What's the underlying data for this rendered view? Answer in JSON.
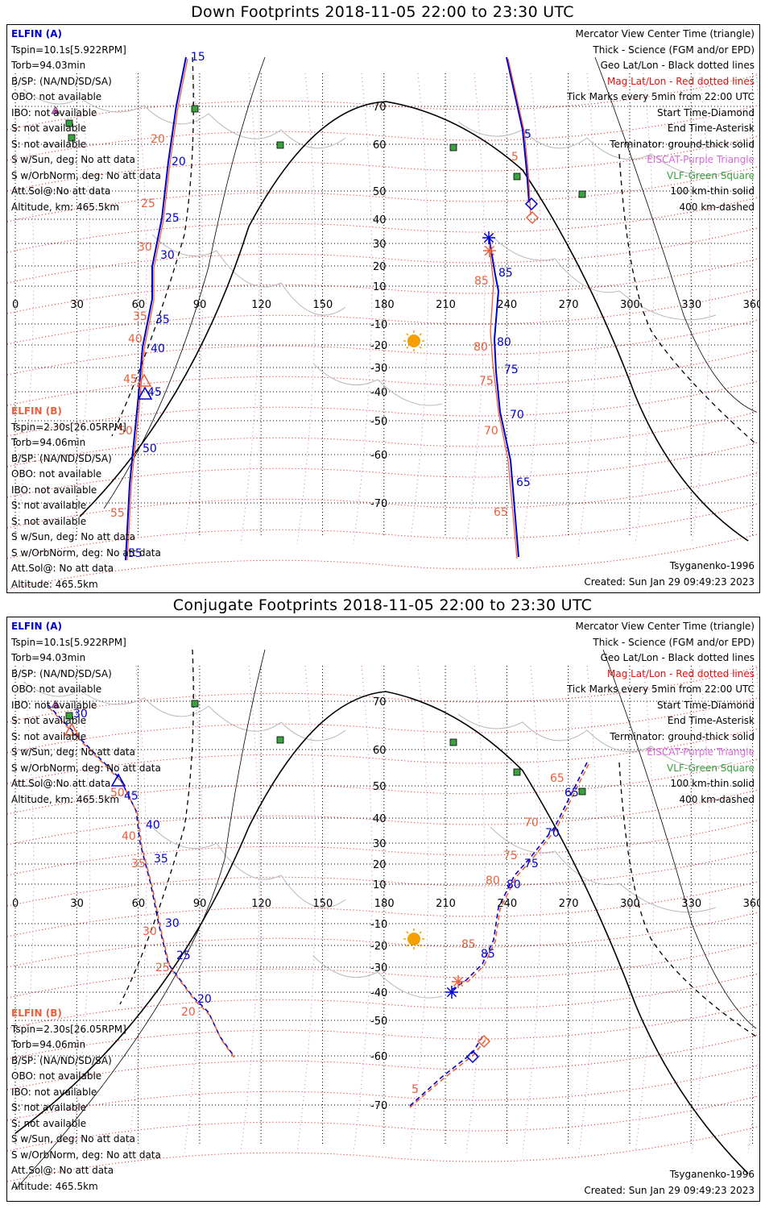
{
  "titles": {
    "down": "Down Footprints 2018-11-05 22:00 to 23:30 UTC",
    "conjugate": "Conjugate Footprints 2018-11-05 22:00 to 23:30 UTC"
  },
  "elfin_a": {
    "header": "ELFIN (A)",
    "lines": [
      "Tspin=10.1s[5.922RPM]",
      "Torb=94.03min",
      "B/SP: (NA/ND/SD/SA)",
      "OBO: not available",
      "IBO: not available",
      "S: not available",
      "S: not available",
      "S w/Sun, deg: No att data",
      "S w/OrbNorm, deg: No att data",
      "Att.Sol@:No att data",
      "Altitude, km: 465.5km"
    ]
  },
  "elfin_b": {
    "header": "ELFIN (B)",
    "lines": [
      "Tspin=2.30s[26.05RPM]",
      "Torb=94.06min",
      "B/SP: (NA/ND/SD/SA)",
      "OBO: not available",
      "IBO: not available",
      "S: not available",
      "S: not available",
      "S w/Sun, deg: No att data",
      "S w/OrbNorm, deg: No att data",
      "Att.Sol@: No att data",
      "Altitude: 465.5km"
    ]
  },
  "legend": {
    "mercator": "Mercator View Center Time (triangle)",
    "thick": "Thick - Science (FGM and/or EPD)",
    "geo": "Geo Lat/Lon - Black dotted lines",
    "mag": "Mag Lat/Lon - Red dotted lines",
    "ticks": "Tick Marks every 5min from 22:00 UTC",
    "start": "Start Time-Diamond",
    "end": "End Time-Asterisk",
    "terminator": "Terminator: ground-thick solid",
    "eiscat": "EISCAT-Purple Triangle",
    "vlf": "VLF-Green Square",
    "km100": "100 km-thin solid",
    "km400": "400 km-dashed"
  },
  "footer": {
    "model": "Tsyganenko-1996",
    "created": "Created: Sun Jan 29 09:49:23 2023"
  },
  "axes": {
    "lon_ticks": [
      "0",
      "30",
      "60",
      "90",
      "120",
      "150",
      "180",
      "210",
      "240",
      "270",
      "300",
      "330",
      "360"
    ],
    "lat_ticks": [
      "70",
      "60",
      "50",
      "40",
      "30",
      "20",
      "10",
      "-10",
      "-20",
      "-30",
      "-40",
      "-50",
      "-60",
      "-70"
    ]
  },
  "colors": {
    "elfin_a": "#0000cc",
    "elfin_b": "#e8603c",
    "mag_grid": "#e01010",
    "geo_grid": "#000000",
    "eiscat": "#d86ad8",
    "vlf": "#3aa040",
    "sun": "#f5a000"
  },
  "down_tracks": {
    "a1_ticks": [
      "15",
      "20",
      "25",
      "30",
      "35",
      "40",
      "45",
      "50",
      "55"
    ],
    "b1_ticks": [
      "20",
      "25",
      "30",
      "35",
      "40",
      "45",
      "50",
      "55"
    ],
    "a2_ticks": [
      "5",
      "85",
      "80",
      "75",
      "70",
      "65"
    ],
    "b2_ticks": [
      "5",
      "85",
      "80",
      "75",
      "70",
      "65"
    ]
  },
  "conj_tracks": {
    "a1_ticks": [
      "30",
      "45",
      "40",
      "35",
      "30",
      "25",
      "20"
    ],
    "b1_ticks": [
      "50",
      "40",
      "35",
      "30",
      "25",
      "20"
    ],
    "a2_ticks": [
      "65",
      "70",
      "75",
      "80",
      "85"
    ],
    "b2_ticks": [
      "65",
      "70",
      "75",
      "80",
      "85",
      "5"
    ]
  }
}
